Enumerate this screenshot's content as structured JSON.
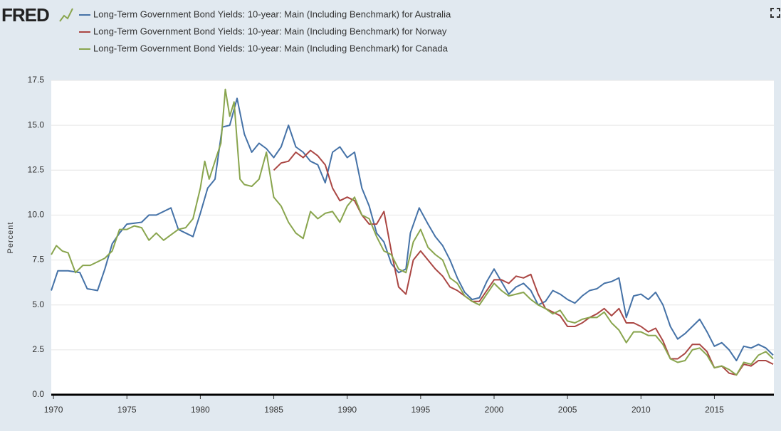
{
  "logo": "FRED",
  "chart_data": {
    "type": "line",
    "y_label": "Percent",
    "xlim": [
      1969.85,
      2019.05
    ],
    "ylim": [
      0,
      17.5
    ],
    "xticks": [
      1970,
      1975,
      1980,
      1985,
      1990,
      1995,
      2000,
      2005,
      2010,
      2015
    ],
    "yticks": [
      {
        "value": 0,
        "label": "0.0"
      },
      {
        "value": 2.5,
        "label": "2.5"
      },
      {
        "value": 5,
        "label": "5.0"
      },
      {
        "value": 7.5,
        "label": "7.5"
      },
      {
        "value": 10,
        "label": "10.0"
      },
      {
        "value": 12.5,
        "label": "12.5"
      },
      {
        "value": 15,
        "label": "15.0"
      },
      {
        "value": 17.5,
        "label": "17.5"
      }
    ],
    "grid": true,
    "series": [
      {
        "name": "Long-Term Government Bond Yields: 10-year: Main (Including Benchmark) for Australia",
        "color": "#4572a7",
        "x": [
          1969.85,
          1970.3,
          1971,
          1971.8,
          1972.3,
          1973,
          1973.5,
          1974,
          1974.5,
          1975,
          1976,
          1976.5,
          1977,
          1978,
          1978.5,
          1979,
          1979.5,
          1980,
          1980.5,
          1981,
          1981.5,
          1982,
          1982.5,
          1983,
          1983.5,
          1984,
          1984.5,
          1985,
          1985.5,
          1986,
          1986.5,
          1987,
          1987.5,
          1988,
          1988.5,
          1989,
          1989.5,
          1990,
          1990.5,
          1991,
          1991.5,
          1992,
          1992.5,
          1993,
          1993.5,
          1994,
          1994.3,
          1994.9,
          1995.5,
          1996,
          1996.5,
          1997,
          1997.5,
          1998,
          1998.5,
          1999,
          1999.5,
          2000,
          2000.5,
          2001,
          2001.5,
          2002,
          2002.5,
          2003,
          2003.5,
          2004,
          2004.5,
          2005,
          2005.5,
          2006,
          2006.5,
          2007,
          2007.5,
          2008,
          2008.5,
          2009,
          2009.5,
          2010,
          2010.5,
          2011,
          2011.5,
          2012,
          2012.5,
          2013,
          2013.5,
          2014,
          2014.5,
          2015,
          2015.5,
          2016,
          2016.5,
          2017,
          2017.5,
          2018,
          2018.5,
          2019
        ],
        "values": [
          5.8,
          6.9,
          6.9,
          6.8,
          5.9,
          5.8,
          7.0,
          8.4,
          9.0,
          9.5,
          9.6,
          10.0,
          10.0,
          10.4,
          9.2,
          9.0,
          8.8,
          10.1,
          11.5,
          12.0,
          14.9,
          15.0,
          16.5,
          14.5,
          13.5,
          14.0,
          13.7,
          13.2,
          13.8,
          15.0,
          13.8,
          13.5,
          13.0,
          12.8,
          11.8,
          13.5,
          13.8,
          13.2,
          13.5,
          11.5,
          10.5,
          9.0,
          8.5,
          7.3,
          6.8,
          7.0,
          9.0,
          10.4,
          9.5,
          8.8,
          8.3,
          7.5,
          6.5,
          5.7,
          5.3,
          5.4,
          6.3,
          7.0,
          6.3,
          5.6,
          6.0,
          6.2,
          5.8,
          5.0,
          5.2,
          5.8,
          5.6,
          5.3,
          5.1,
          5.5,
          5.8,
          5.9,
          6.2,
          6.3,
          6.5,
          4.3,
          5.5,
          5.6,
          5.3,
          5.7,
          5.0,
          3.8,
          3.1,
          3.4,
          3.8,
          4.2,
          3.5,
          2.7,
          2.9,
          2.5,
          1.9,
          2.7,
          2.6,
          2.8,
          2.6,
          2.2
        ]
      },
      {
        "name": "Long-Term Government Bond Yields: 10-year: Main (Including Benchmark) for Norway",
        "color": "#aa4643",
        "x": [
          1985,
          1985.5,
          1986,
          1986.5,
          1987,
          1987.5,
          1988,
          1988.5,
          1989,
          1989.5,
          1990,
          1990.5,
          1991,
          1991.5,
          1992,
          1992.5,
          1993,
          1993.5,
          1994,
          1994.5,
          1995,
          1995.5,
          1996,
          1996.5,
          1997,
          1997.5,
          1998,
          1998.5,
          1999,
          1999.5,
          2000,
          2000.5,
          2001,
          2001.5,
          2002,
          2002.5,
          2003,
          2003.5,
          2004,
          2004.5,
          2005,
          2005.5,
          2006,
          2006.5,
          2007,
          2007.5,
          2008,
          2008.5,
          2009,
          2009.5,
          2010,
          2010.5,
          2011,
          2011.5,
          2012,
          2012.5,
          2013,
          2013.5,
          2014,
          2014.5,
          2015,
          2015.5,
          2016,
          2016.5,
          2017,
          2017.5,
          2018,
          2018.5,
          2019
        ],
        "values": [
          12.5,
          12.9,
          13.0,
          13.5,
          13.2,
          13.6,
          13.3,
          12.8,
          11.5,
          10.8,
          11.0,
          10.8,
          10.0,
          9.5,
          9.5,
          10.2,
          8.0,
          6.0,
          5.6,
          7.5,
          8.0,
          7.5,
          7.0,
          6.6,
          6.0,
          5.8,
          5.5,
          5.2,
          5.2,
          5.8,
          6.4,
          6.4,
          6.2,
          6.6,
          6.5,
          6.7,
          5.6,
          4.8,
          4.6,
          4.4,
          3.8,
          3.8,
          4.0,
          4.3,
          4.5,
          4.8,
          4.4,
          4.8,
          4.0,
          4.0,
          3.8,
          3.5,
          3.7,
          3.0,
          2.0,
          2.0,
          2.3,
          2.8,
          2.8,
          2.4,
          1.5,
          1.6,
          1.2,
          1.1,
          1.7,
          1.6,
          1.9,
          1.9,
          1.7
        ]
      },
      {
        "name": "Long-Term Government Bond Yields: 10-year: Main (Including Benchmark) for Canada",
        "color": "#89a54e",
        "x": [
          1969.85,
          1970.2,
          1970.6,
          1971,
          1971.5,
          1972,
          1972.5,
          1973,
          1973.5,
          1974,
          1974.5,
          1975,
          1975.5,
          1976,
          1976.5,
          1977,
          1977.5,
          1978,
          1978.5,
          1979,
          1979.5,
          1980,
          1980.3,
          1980.6,
          1981,
          1981.4,
          1981.7,
          1982,
          1982.3,
          1982.7,
          1983,
          1983.5,
          1984,
          1984.5,
          1985,
          1985.5,
          1986,
          1986.5,
          1987,
          1987.5,
          1988,
          1988.5,
          1989,
          1989.5,
          1990,
          1990.5,
          1991,
          1991.5,
          1992,
          1992.5,
          1993,
          1993.5,
          1994,
          1994.5,
          1995,
          1995.5,
          1996,
          1996.5,
          1997,
          1997.5,
          1998,
          1998.5,
          1999,
          1999.5,
          2000,
          2000.5,
          2001,
          2001.5,
          2002,
          2002.5,
          2003,
          2003.5,
          2004,
          2004.5,
          2005,
          2005.5,
          2006,
          2006.5,
          2007,
          2007.5,
          2008,
          2008.5,
          2009,
          2009.5,
          2010,
          2010.5,
          2011,
          2011.5,
          2012,
          2012.5,
          2013,
          2013.5,
          2014,
          2014.5,
          2015,
          2015.5,
          2016,
          2016.5,
          2017,
          2017.5,
          2018,
          2018.5,
          2019
        ],
        "values": [
          7.8,
          8.3,
          8.0,
          7.9,
          6.8,
          7.2,
          7.2,
          7.4,
          7.6,
          8.0,
          9.2,
          9.2,
          9.4,
          9.3,
          8.6,
          9.0,
          8.6,
          8.9,
          9.2,
          9.3,
          9.8,
          11.5,
          13.0,
          12.0,
          13.0,
          14.0,
          17.0,
          15.5,
          16.3,
          12.0,
          11.7,
          11.6,
          12.0,
          13.5,
          11.0,
          10.5,
          9.6,
          9.0,
          8.7,
          10.2,
          9.8,
          10.1,
          10.2,
          9.6,
          10.5,
          11.0,
          10.0,
          9.8,
          8.8,
          8.0,
          7.8,
          7.0,
          6.8,
          8.5,
          9.2,
          8.2,
          7.8,
          7.5,
          6.5,
          6.2,
          5.5,
          5.2,
          5.0,
          5.6,
          6.2,
          5.8,
          5.5,
          5.6,
          5.7,
          5.3,
          5.0,
          4.8,
          4.5,
          4.7,
          4.1,
          4.0,
          4.2,
          4.3,
          4.3,
          4.6,
          4.0,
          3.6,
          2.9,
          3.5,
          3.5,
          3.3,
          3.3,
          2.8,
          2.0,
          1.8,
          1.9,
          2.5,
          2.6,
          2.2,
          1.5,
          1.6,
          1.4,
          1.1,
          1.8,
          1.7,
          2.2,
          2.4,
          2.0
        ]
      }
    ]
  }
}
